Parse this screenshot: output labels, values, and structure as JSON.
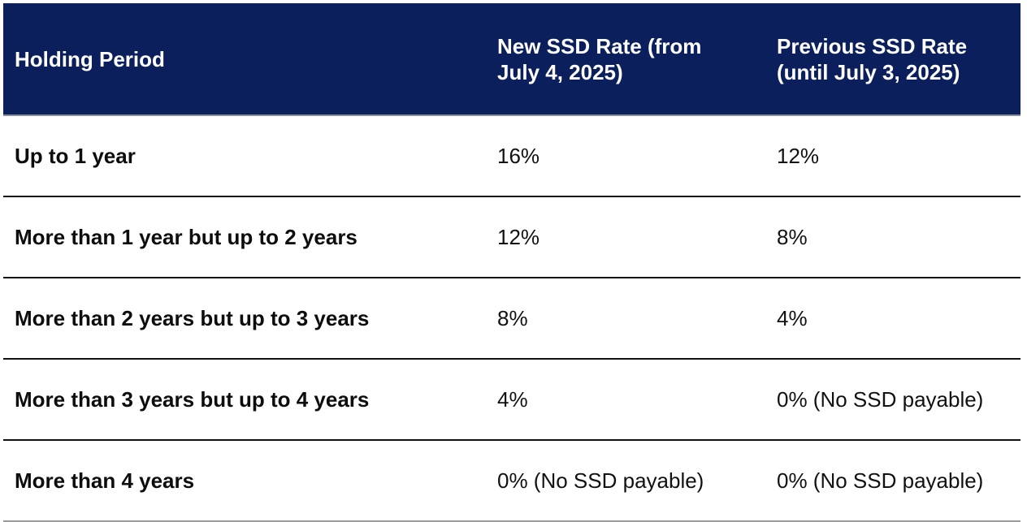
{
  "table": {
    "headers": [
      "Holding Period",
      "New SSD Rate (from July 4, 2025)",
      "Previous SSD Rate (until July 3, 2025)"
    ],
    "rows": [
      {
        "period": "Up to 1 year",
        "new_rate": "16%",
        "previous_rate": "12%"
      },
      {
        "period": "More than 1 year but up to 2 years",
        "new_rate": "12%",
        "previous_rate": "8%"
      },
      {
        "period": "More than 2 years but up to 3 years",
        "new_rate": "8%",
        "previous_rate": "4%"
      },
      {
        "period": "More than 3 years but up to 4 years",
        "new_rate": "4%",
        "previous_rate": "0% (No SSD payable)"
      },
      {
        "period": "More than 4 years",
        "new_rate": "0% (No SSD payable)",
        "previous_rate": "0% (No SSD payable)"
      }
    ]
  },
  "colors": {
    "header_background": "#0b1f5c",
    "header_text": "#ffffff",
    "row_divider": "#111111"
  }
}
